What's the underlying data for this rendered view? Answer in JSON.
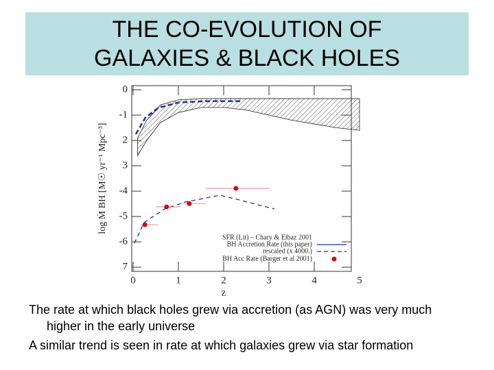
{
  "title_lines": [
    "THE CO-EVOLUTION OF",
    "GALAXIES & BLACK HOLES"
  ],
  "bullets": [
    "The rate at which black holes grew via accretion (as AGN) was very much higher in the early universe",
    "A similar trend is seen in rate at which galaxies grew via star formation"
  ],
  "chart_data": {
    "type": "line",
    "x_label": "z",
    "y_label": "log Ṁ BH [M☉ yr⁻¹ Mpc⁻³]",
    "xlim": [
      0,
      5
    ],
    "ylim": [
      -7,
      0
    ],
    "xticks": [
      0,
      1,
      2,
      3,
      4,
      5
    ],
    "yticks": [
      0,
      -1,
      {
        "value": -2,
        "label": "2"
      },
      {
        "value": -3,
        "label": "3"
      },
      -4,
      -5,
      -6,
      {
        "value": -7,
        "label": "7"
      }
    ],
    "band": {
      "name": "SFR (Lit) – Chary & Elbaz 2001",
      "color": "#222",
      "x": [
        0.1,
        0.3,
        0.6,
        1.0,
        1.5,
        2.0,
        2.5,
        3.0,
        3.5,
        4.0,
        4.5,
        5.0
      ],
      "upper": [
        -1.9,
        -1.2,
        -0.6,
        -0.4,
        -0.35,
        -0.35,
        -0.35,
        -0.35,
        -0.35,
        -0.35,
        -0.35,
        -0.35
      ],
      "lower": [
        -2.6,
        -2.0,
        -1.3,
        -0.9,
        -0.7,
        -0.7,
        -0.8,
        -1.0,
        -1.2,
        -1.35,
        -1.5,
        -1.6
      ]
    },
    "series": [
      {
        "name": "rescaled (x 4000.)",
        "color": "#1f2fa0",
        "x": [
          0.06,
          0.27,
          0.55,
          1.0,
          1.6,
          2.0,
          2.4
        ],
        "values": [
          -1.75,
          -1.1,
          -0.72,
          -0.5,
          -0.45,
          -0.45,
          -0.45
        ]
      },
      {
        "name": "BH Accretion Rate (this paper)",
        "color": "#1f2fa0",
        "x": [
          0.03,
          0.24,
          0.7,
          1.15,
          1.91,
          2.36,
          2.82,
          3.12
        ],
        "values": [
          -6.05,
          -5.24,
          -4.7,
          -4.43,
          -4.16,
          -4.35,
          -4.57,
          -4.7
        ]
      }
    ],
    "points": {
      "name": "BH Acc Rate (Barger et al 2001)",
      "color": "#cc1111",
      "x": [
        0.26,
        0.74,
        1.24,
        2.27
      ],
      "values": [
        -5.32,
        -4.62,
        -4.49,
        -3.89
      ],
      "x_lo": [
        0.17,
        0.5,
        1.03,
        1.6
      ],
      "x_hi": [
        0.55,
        1.03,
        1.6,
        3.0
      ]
    }
  }
}
